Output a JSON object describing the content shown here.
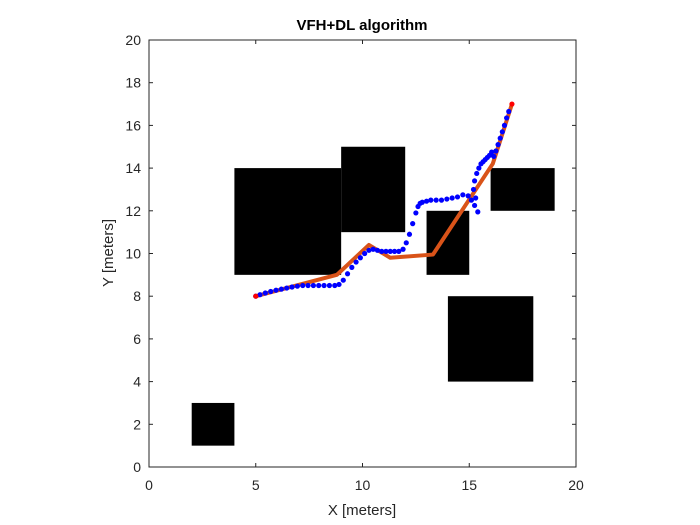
{
  "chart_data": {
    "type": "line",
    "title": "VFH+DL algorithm",
    "xlabel": "X [meters]",
    "ylabel": "Y [meters]",
    "xlim": [
      0,
      20
    ],
    "ylim": [
      0,
      20
    ],
    "xticks": [
      "0",
      "5",
      "10",
      "15",
      "20"
    ],
    "yticks": [
      "0",
      "2",
      "4",
      "6",
      "8",
      "10",
      "12",
      "14",
      "16",
      "18",
      "20"
    ],
    "grid": false,
    "box": true,
    "obstacles": [
      {
        "x": [
          2,
          4
        ],
        "y": [
          1,
          3
        ]
      },
      {
        "x": [
          4,
          9
        ],
        "y": [
          9,
          14
        ]
      },
      {
        "x": [
          9,
          12
        ],
        "y": [
          11,
          15
        ]
      },
      {
        "x": [
          13,
          15
        ],
        "y": [
          9,
          12
        ]
      },
      {
        "x": [
          14,
          18
        ],
        "y": [
          4,
          8
        ]
      },
      {
        "x": [
          16,
          19
        ],
        "y": [
          12,
          14
        ]
      }
    ],
    "obstacle_color": "#000000",
    "series": [
      {
        "style": "line",
        "color": "#D95319",
        "x": [
          5,
          8.8,
          10.3,
          11.3,
          13.3,
          16.1,
          17
        ],
        "y": [
          8,
          9,
          10.4,
          9.8,
          9.95,
          14.2,
          17
        ]
      },
      {
        "style": "markers",
        "color": "#0000FF",
        "x": [
          5,
          5.2,
          5.45,
          5.7,
          5.95,
          6.2,
          6.45,
          6.7,
          6.95,
          7.2,
          7.45,
          7.7,
          7.95,
          8.2,
          8.45,
          8.7,
          8.9,
          9.1,
          9.3,
          9.5,
          9.7,
          9.9,
          10.1,
          10.3,
          10.5,
          10.7,
          10.9,
          11.1,
          11.3,
          11.5,
          11.7,
          11.9,
          12.05,
          12.2,
          12.35,
          12.5,
          12.6,
          12.7,
          12.8,
          13.0,
          13.2,
          13.45,
          13.7,
          13.95,
          14.2,
          14.45,
          14.7,
          14.95,
          15.1,
          15.25,
          15.4,
          15.3,
          15.2,
          15.25,
          15.35,
          15.45,
          15.55,
          15.65,
          15.75,
          15.85,
          15.95,
          16.05,
          16.15,
          16.25,
          16.35,
          16.45,
          16.55,
          16.65,
          16.75,
          16.85
        ],
        "y": [
          8,
          8.07,
          8.15,
          8.22,
          8.28,
          8.33,
          8.38,
          8.43,
          8.47,
          8.5,
          8.5,
          8.5,
          8.5,
          8.5,
          8.5,
          8.5,
          8.55,
          8.75,
          9.05,
          9.35,
          9.6,
          9.8,
          10.0,
          10.15,
          10.2,
          10.15,
          10.1,
          10.1,
          10.1,
          10.1,
          10.1,
          10.2,
          10.5,
          10.9,
          11.4,
          11.9,
          12.2,
          12.35,
          12.4,
          12.45,
          12.5,
          12.5,
          12.5,
          12.55,
          12.6,
          12.65,
          12.75,
          12.7,
          12.5,
          12.25,
          11.95,
          12.6,
          13.0,
          13.4,
          13.75,
          14.0,
          14.2,
          14.3,
          14.4,
          14.5,
          14.6,
          14.75,
          14.55,
          14.8,
          15.1,
          15.4,
          15.7,
          16.0,
          16.35,
          16.65
        ]
      },
      {
        "style": "markers",
        "color": "#FF0000",
        "x": [
          5,
          17
        ],
        "y": [
          8,
          17
        ]
      }
    ]
  }
}
